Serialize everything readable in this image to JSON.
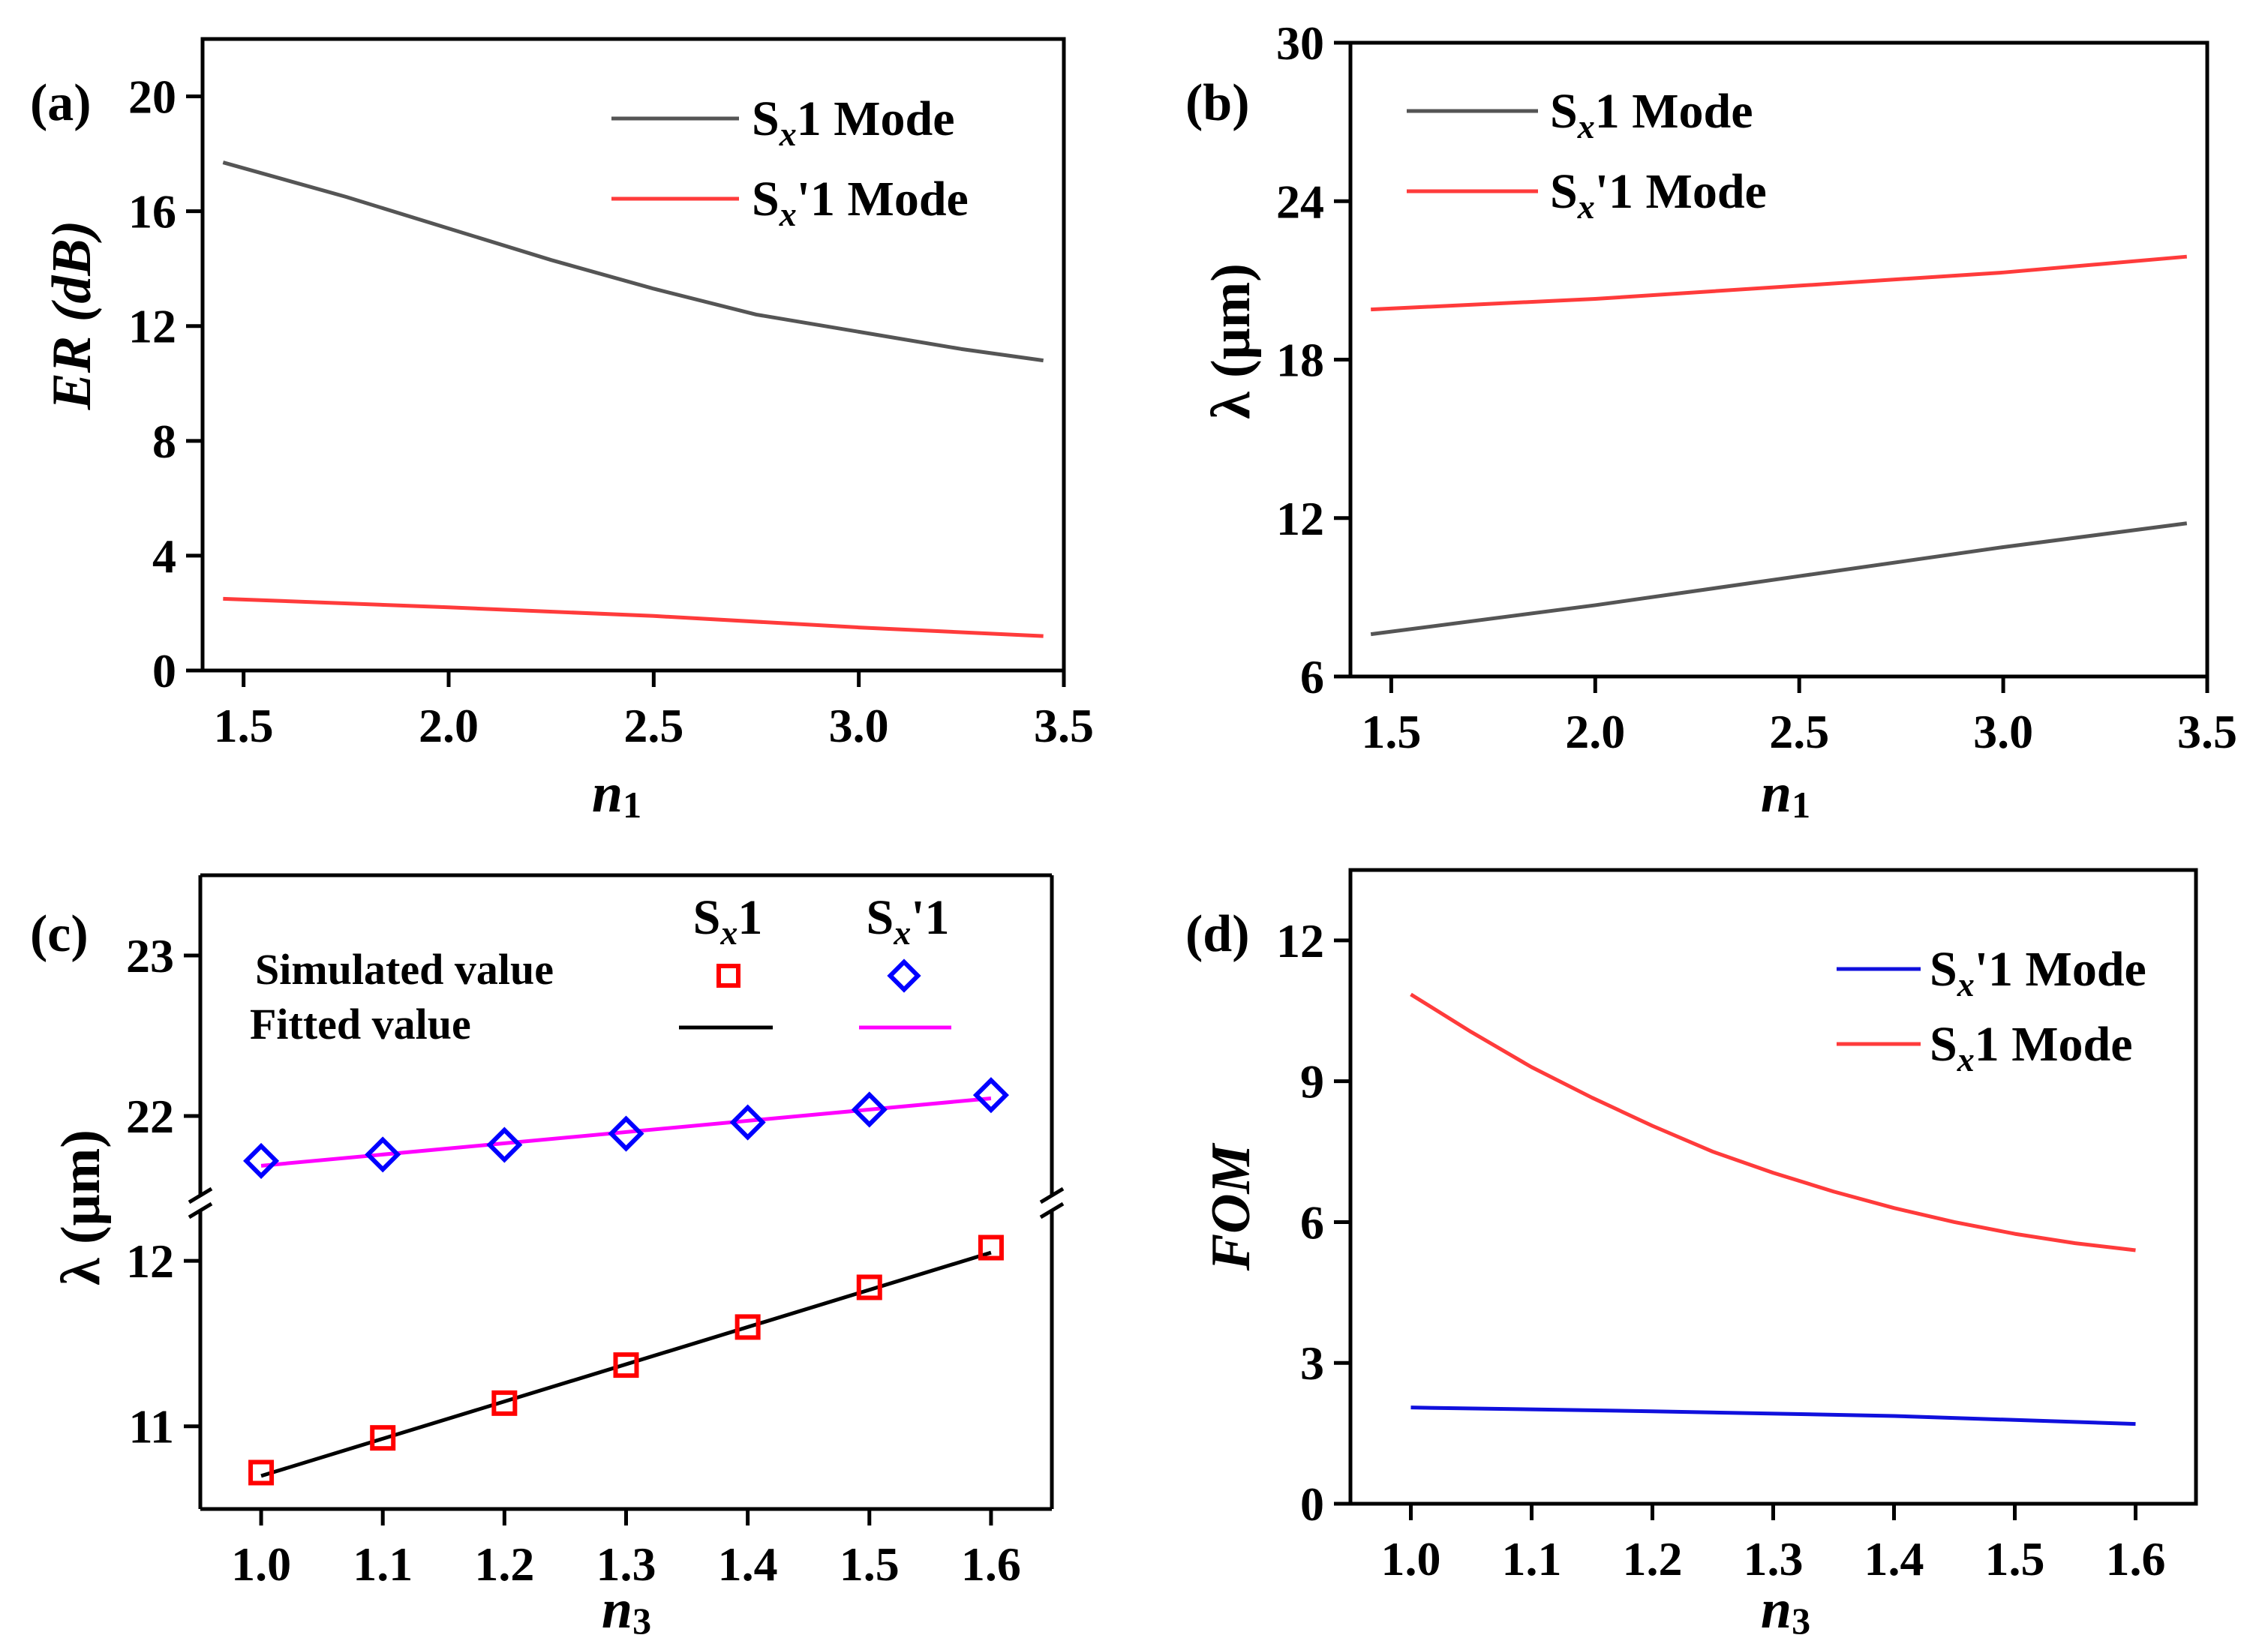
{
  "panels": [
    {
      "id": "a",
      "label": "(a)",
      "xlabel_main": "n",
      "xlabel_sub": "1",
      "ylabel": "ER (dB)"
    },
    {
      "id": "b",
      "label": "(b)",
      "xlabel_main": "n",
      "xlabel_sub": "1",
      "ylabel": "λ (μm)"
    },
    {
      "id": "c",
      "label": "(c)",
      "xlabel_main": "n",
      "xlabel_sub": "3",
      "ylabel": "λ (μm)"
    },
    {
      "id": "d",
      "label": "(d)",
      "xlabel_main": "n",
      "xlabel_sub": "3",
      "ylabel": "FOM"
    }
  ],
  "legend_a": [
    {
      "pre": "S",
      "sub": "x",
      "post": "1 Mode",
      "color": "#555555"
    },
    {
      "pre": "S",
      "sub": "x",
      "post": "'1 Mode",
      "color": "#ff3b3b"
    }
  ],
  "legend_b": [
    {
      "pre": "S",
      "sub": "x",
      "post": "1 Mode",
      "color": "#555555"
    },
    {
      "pre": "S",
      "sub": "x",
      "post": "'1 Mode",
      "color": "#ff3b3b"
    }
  ],
  "legend_c": {
    "col1": {
      "pre": "S",
      "sub": "x",
      "post": "1"
    },
    "col2": {
      "pre": "S",
      "sub": "x",
      "post": "'1"
    },
    "row1": "Simulated value",
    "row2": "Fitted value"
  },
  "legend_d": [
    {
      "pre": "S",
      "sub": "x",
      "post": "'1 Mode",
      "color": "#1010dd"
    },
    {
      "pre": "S",
      "sub": "x",
      "post": "1 Mode",
      "color": "#ff3b3b"
    }
  ],
  "chart_data": [
    {
      "panel": "a",
      "type": "line",
      "title": "",
      "xlabel": "n1",
      "ylabel": "ER (dB)",
      "xlim": [
        1.4,
        3.5
      ],
      "ylim": [
        0,
        22
      ],
      "xticks": [
        1.5,
        2.0,
        2.5,
        3.0,
        3.5
      ],
      "yticks": [
        0,
        4,
        8,
        12,
        16,
        20
      ],
      "series": [
        {
          "name": "Sx1 Mode",
          "color": "#555555",
          "x": [
            1.45,
            1.75,
            2.0,
            2.25,
            2.5,
            2.75,
            3.0,
            3.25,
            3.45
          ],
          "y": [
            17.7,
            16.5,
            15.4,
            14.3,
            13.3,
            12.4,
            11.8,
            11.2,
            10.8
          ]
        },
        {
          "name": "Sx'1 Mode",
          "color": "#ff3b3b",
          "x": [
            1.45,
            2.0,
            2.5,
            3.0,
            3.45
          ],
          "y": [
            2.5,
            2.2,
            1.9,
            1.5,
            1.2
          ]
        }
      ]
    },
    {
      "panel": "b",
      "type": "line",
      "title": "",
      "xlabel": "n1",
      "ylabel": "λ (μm)",
      "xlim": [
        1.4,
        3.5
      ],
      "ylim": [
        6,
        30
      ],
      "xticks": [
        1.5,
        2.0,
        2.5,
        3.0,
        3.5
      ],
      "yticks": [
        6,
        12,
        18,
        24,
        30
      ],
      "series": [
        {
          "name": "Sx1 Mode",
          "color": "#555555",
          "x": [
            1.45,
            2.0,
            2.5,
            3.0,
            3.45
          ],
          "y": [
            7.6,
            8.7,
            9.8,
            10.9,
            11.8
          ]
        },
        {
          "name": "Sx'1 Mode",
          "color": "#ff3b3b",
          "x": [
            1.45,
            2.0,
            2.5,
            3.0,
            3.45
          ],
          "y": [
            19.9,
            20.3,
            20.8,
            21.3,
            21.9
          ]
        }
      ]
    },
    {
      "panel": "c",
      "type": "scatter",
      "title": "",
      "xlabel": "n3",
      "ylabel": "λ (μm)",
      "xlim": [
        0.95,
        1.65
      ],
      "xticks": [
        1.0,
        1.1,
        1.2,
        1.3,
        1.4,
        1.5,
        1.6
      ],
      "upper_ylim": [
        21.5,
        23.5
      ],
      "upper_yticks": [
        22,
        23
      ],
      "lower_ylim": [
        10.5,
        12.3
      ],
      "lower_yticks": [
        11,
        12
      ],
      "series": [
        {
          "name": "Sx1 Simulated value",
          "marker": "square",
          "color": "#ff0000",
          "x": [
            1.0,
            1.1,
            1.2,
            1.3,
            1.4,
            1.5,
            1.6
          ],
          "y": [
            10.72,
            10.93,
            11.14,
            11.37,
            11.6,
            11.84,
            12.08
          ]
        },
        {
          "name": "Sx1 Fitted value",
          "type": "line",
          "color": "#000000",
          "x": [
            1.0,
            1.6
          ],
          "y": [
            10.7,
            12.05
          ]
        },
        {
          "name": "Sx'1 Simulated value",
          "marker": "diamond",
          "color": "#0000ff",
          "x": [
            1.0,
            1.1,
            1.2,
            1.3,
            1.4,
            1.5,
            1.6
          ],
          "y": [
            21.72,
            21.76,
            21.82,
            21.89,
            21.96,
            22.04,
            22.13
          ]
        },
        {
          "name": "Sx'1 Fitted value",
          "type": "line",
          "color": "#ff00ff",
          "x": [
            1.0,
            1.6
          ],
          "y": [
            21.69,
            22.11
          ]
        }
      ]
    },
    {
      "panel": "d",
      "type": "line",
      "title": "",
      "xlabel": "n3",
      "ylabel": "FOM",
      "xlim": [
        0.95,
        1.65
      ],
      "ylim": [
        0,
        13.5
      ],
      "xticks": [
        1.0,
        1.1,
        1.2,
        1.3,
        1.4,
        1.5,
        1.6
      ],
      "yticks": [
        0,
        3,
        6,
        9,
        12
      ],
      "series": [
        {
          "name": "Sx'1 Mode",
          "color": "#1010dd",
          "x": [
            1.0,
            1.2,
            1.4,
            1.6
          ],
          "y": [
            2.05,
            1.97,
            1.87,
            1.7
          ]
        },
        {
          "name": "Sx1 Mode",
          "color": "#ff3b3b",
          "x": [
            1.0,
            1.05,
            1.1,
            1.15,
            1.2,
            1.25,
            1.3,
            1.35,
            1.4,
            1.45,
            1.5,
            1.55,
            1.6
          ],
          "y": [
            10.85,
            10.05,
            9.3,
            8.65,
            8.05,
            7.5,
            7.05,
            6.65,
            6.3,
            6.0,
            5.75,
            5.55,
            5.4
          ]
        }
      ]
    }
  ]
}
